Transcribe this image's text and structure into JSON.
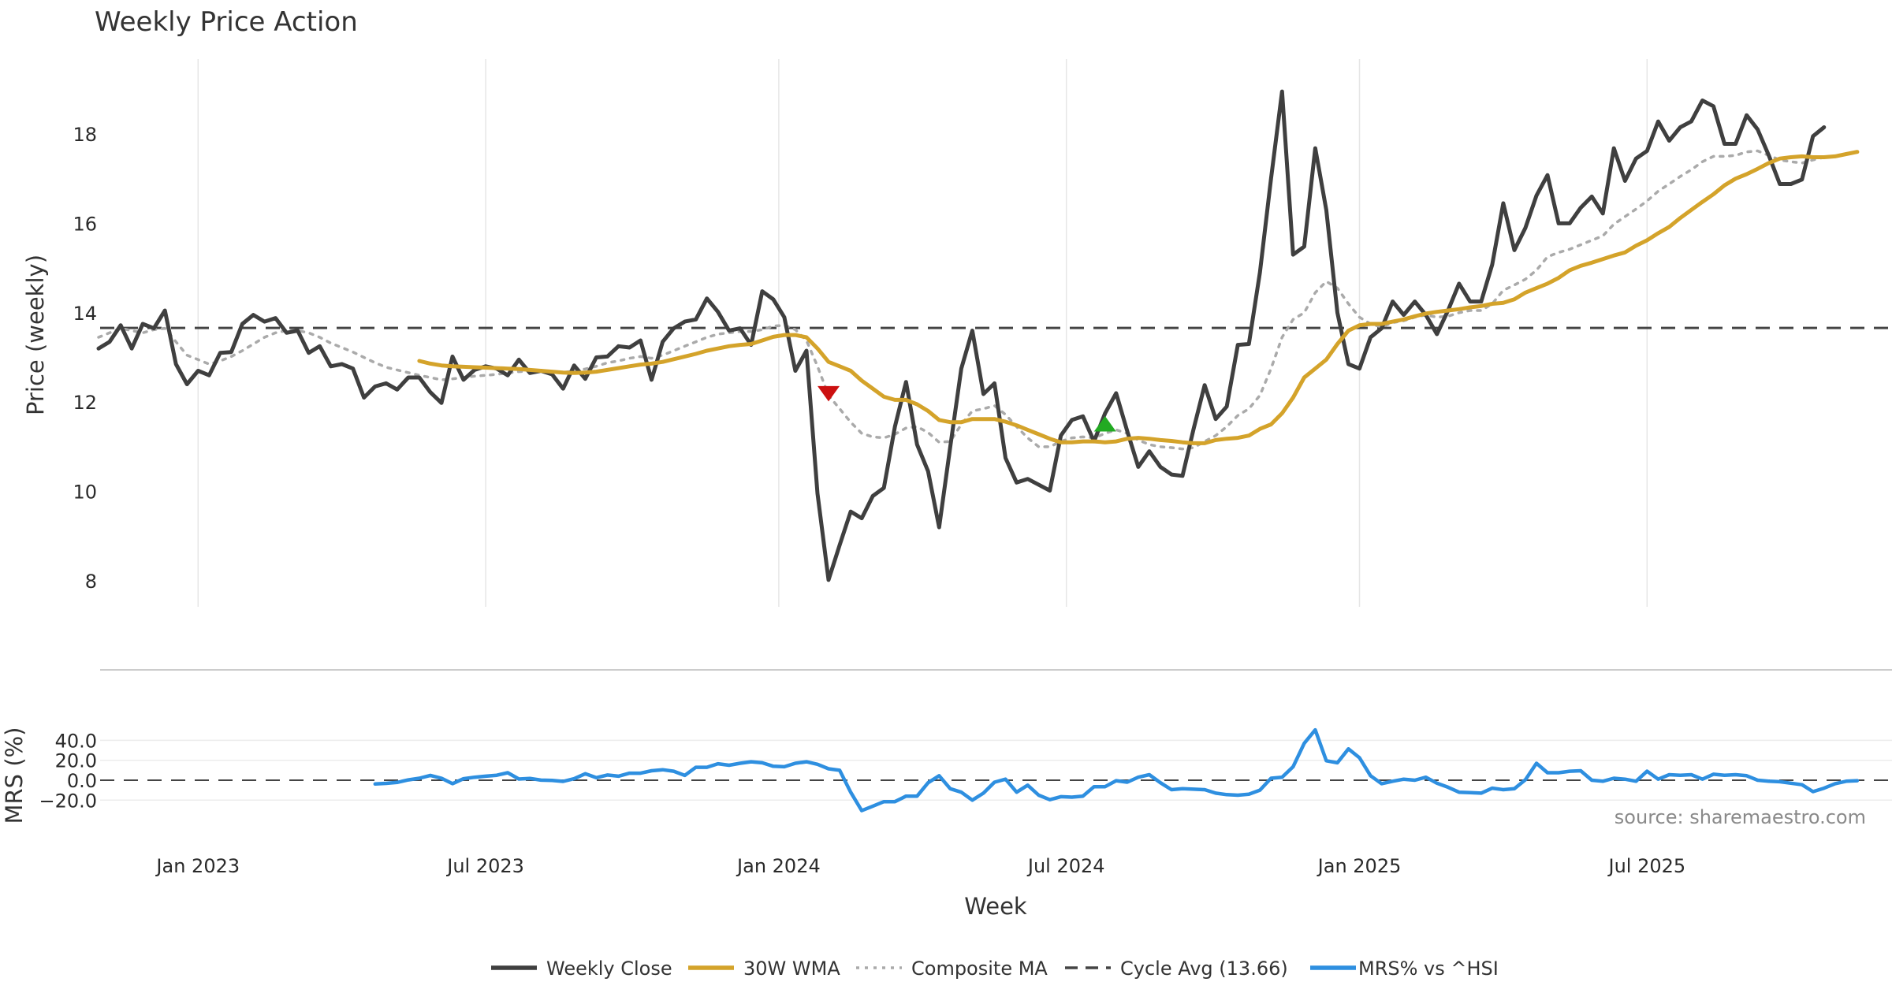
{
  "chart_data": [
    {
      "type": "line",
      "title": "Weekly Price Action",
      "xlabel": "",
      "ylabel": "Price (weekly)",
      "ylim": [
        7.4,
        19.6
      ],
      "xlim": [
        0,
        162
      ],
      "yticks": [
        8,
        10,
        12,
        14,
        16,
        18
      ],
      "grid": "vertical",
      "cycle_avg": 13.66,
      "x_date_ticks": [
        {
          "x": 9,
          "label": "Jan 2023"
        },
        {
          "x": 35,
          "label": "Jul 2023"
        },
        {
          "x": 61.5,
          "label": "Jan 2024"
        },
        {
          "x": 87.5,
          "label": "Jul 2024"
        },
        {
          "x": 114,
          "label": "Jan 2025"
        },
        {
          "x": 140,
          "label": "Jul 2025"
        }
      ],
      "series": [
        {
          "name": "Weekly Close",
          "color": "#3f3f3f",
          "style": "solid",
          "start": 0,
          "values": [
            13.2,
            13.35,
            13.72,
            13.2,
            13.75,
            13.65,
            14.05,
            12.85,
            12.4,
            12.7,
            12.6,
            13.1,
            13.12,
            13.75,
            13.95,
            13.8,
            13.88,
            13.55,
            13.6,
            13.1,
            13.25,
            12.8,
            12.85,
            12.75,
            12.1,
            12.35,
            12.42,
            12.28,
            12.55,
            12.55,
            12.22,
            11.98,
            13.02,
            12.5,
            12.72,
            12.8,
            12.75,
            12.6,
            12.95,
            12.65,
            12.7,
            12.62,
            12.3,
            12.82,
            12.52,
            13.0,
            13.02,
            13.25,
            13.22,
            13.38,
            12.5,
            13.35,
            13.65,
            13.8,
            13.85,
            14.32,
            14.02,
            13.6,
            13.65,
            13.28,
            14.48,
            14.3,
            13.9,
            12.7,
            13.15,
            9.95,
            8.02,
            8.8,
            9.55,
            9.4,
            9.9,
            10.08,
            11.45,
            12.45,
            11.05,
            10.45,
            9.2,
            11.0,
            12.75,
            13.6,
            12.18,
            12.42,
            10.75,
            10.2,
            10.28,
            10.15,
            10.02,
            11.25,
            11.6,
            11.68,
            11.12,
            11.75,
            12.2,
            11.35,
            10.55,
            10.9,
            10.55,
            10.38,
            10.35,
            11.4,
            12.38,
            11.62,
            11.9,
            13.28,
            13.3,
            14.9,
            17.0,
            18.95,
            15.3,
            15.48,
            17.68,
            16.3,
            14.0,
            12.85,
            12.75,
            13.45,
            13.65,
            14.25,
            13.95,
            14.25,
            13.95,
            13.52,
            14.05,
            14.65,
            14.25,
            14.25,
            15.08,
            16.45,
            15.4,
            15.9,
            16.62,
            17.08,
            16.0,
            16.0,
            16.35,
            16.6,
            16.22,
            17.68,
            16.95,
            17.45,
            17.62,
            18.28,
            17.85,
            18.15,
            18.28,
            18.75,
            18.62,
            17.78,
            17.78,
            18.42,
            18.1,
            17.52,
            16.88,
            16.88,
            16.98,
            17.95,
            18.15
          ]
        },
        {
          "name": "30W WMA",
          "color": "#d4a32a",
          "style": "solid",
          "start": 29,
          "values": [
            12.92,
            12.86,
            12.82,
            12.8,
            12.79,
            12.78,
            12.77,
            12.76,
            12.75,
            12.74,
            12.72,
            12.7,
            12.68,
            12.66,
            12.65,
            12.66,
            12.68,
            12.72,
            12.76,
            12.8,
            12.84,
            12.86,
            12.9,
            12.96,
            13.02,
            13.08,
            13.15,
            13.2,
            13.25,
            13.28,
            13.3,
            13.38,
            13.46,
            13.5,
            13.5,
            13.45,
            13.2,
            12.9,
            12.8,
            12.7,
            12.48,
            12.3,
            12.12,
            12.05,
            12.05,
            11.95,
            11.8,
            11.6,
            11.55,
            11.55,
            11.62,
            11.62,
            11.62,
            11.56,
            11.48,
            11.38,
            11.28,
            11.18,
            11.1,
            11.1,
            11.12,
            11.12,
            11.1,
            11.12,
            11.18,
            11.2,
            11.18,
            11.15,
            11.13,
            11.1,
            11.08,
            11.08,
            11.15,
            11.18,
            11.2,
            11.25,
            11.4,
            11.5,
            11.75,
            12.1,
            12.55,
            12.75,
            12.95,
            13.3,
            13.6,
            13.72,
            13.75,
            13.75,
            13.8,
            13.85,
            13.92,
            13.98,
            14.02,
            14.05,
            14.08,
            14.12,
            14.15,
            14.2,
            14.22,
            14.3,
            14.45,
            14.55,
            14.65,
            14.78,
            14.95,
            15.05,
            15.12,
            15.2,
            15.28,
            15.35,
            15.5,
            15.62,
            15.78,
            15.92,
            16.12,
            16.3,
            16.48,
            16.65,
            16.85,
            17.0,
            17.1,
            17.22,
            17.35,
            17.45,
            17.48,
            17.5,
            17.48,
            17.48,
            17.5,
            17.55,
            17.6
          ]
        },
        {
          "name": "Composite MA",
          "color": "#aaaaaa",
          "style": "dotted",
          "start": 0,
          "values": [
            13.45,
            13.55,
            13.65,
            13.6,
            13.55,
            13.62,
            13.65,
            13.35,
            13.05,
            12.95,
            12.85,
            12.92,
            13.02,
            13.15,
            13.3,
            13.45,
            13.55,
            13.6,
            13.6,
            13.55,
            13.45,
            13.32,
            13.22,
            13.12,
            13.0,
            12.88,
            12.78,
            12.72,
            12.66,
            12.6,
            12.55,
            12.5,
            12.52,
            12.55,
            12.58,
            12.6,
            12.62,
            12.65,
            12.68,
            12.7,
            12.7,
            12.68,
            12.66,
            12.7,
            12.74,
            12.8,
            12.88,
            12.92,
            12.98,
            13.02,
            12.98,
            13.05,
            13.15,
            13.25,
            13.35,
            13.45,
            13.52,
            13.55,
            13.58,
            13.58,
            13.62,
            13.7,
            13.72,
            13.62,
            13.38,
            12.8,
            12.15,
            11.85,
            11.55,
            11.3,
            11.22,
            11.2,
            11.28,
            11.42,
            11.45,
            11.32,
            11.1,
            11.12,
            11.5,
            11.8,
            11.85,
            11.92,
            11.72,
            11.45,
            11.2,
            11.0,
            11.0,
            11.12,
            11.2,
            11.22,
            11.2,
            11.3,
            11.38,
            11.3,
            11.15,
            11.05,
            11.0,
            10.98,
            10.95,
            10.98,
            11.12,
            11.25,
            11.45,
            11.7,
            11.85,
            12.15,
            12.75,
            13.45,
            13.85,
            14.0,
            14.45,
            14.7,
            14.55,
            14.2,
            13.9,
            13.75,
            13.68,
            13.78,
            13.82,
            13.9,
            13.95,
            13.9,
            13.92,
            14.0,
            14.05,
            14.05,
            14.2,
            14.5,
            14.62,
            14.75,
            14.95,
            15.25,
            15.35,
            15.42,
            15.52,
            15.62,
            15.72,
            15.98,
            16.15,
            16.32,
            16.5,
            16.72,
            16.88,
            17.05,
            17.2,
            17.38,
            17.5,
            17.5,
            17.52,
            17.6,
            17.62,
            17.52,
            17.42,
            17.38,
            17.35,
            17.42,
            17.48
          ]
        },
        {
          "name": "Cycle Avg (13.66)",
          "color": "#444444",
          "style": "dashed",
          "value": 13.66
        }
      ],
      "markers": [
        {
          "type": "sell",
          "shape": "down-triangle",
          "color": "#cc1111",
          "x": 66,
          "y": 12.2
        },
        {
          "type": "buy",
          "shape": "up-triangle",
          "color": "#22aa22",
          "x": 91,
          "y": 11.5
        }
      ]
    },
    {
      "type": "line",
      "xlabel": "Week",
      "ylabel": "MRS (%)",
      "ylim": [
        -32,
        52
      ],
      "yticks": [
        -20,
        0,
        20,
        40
      ],
      "ytick_labels": [
        "−20.0",
        "0.0",
        "20.0",
        "40.0"
      ],
      "zero_line": 0,
      "series": [
        {
          "name": "MRS% vs ^HSI",
          "color": "#2e8fe0",
          "style": "solid",
          "start": 25,
          "values": [
            -3.8,
            -3.2,
            -2.2,
            0.3,
            2.0,
            4.8,
            2.0,
            -3.5,
            1.5,
            3.0,
            4.0,
            5.0,
            7.5,
            1.2,
            1.8,
            0.1,
            -0.2,
            -1.2,
            1.5,
            6.5,
            2.5,
            5.2,
            4.0,
            7.0,
            7.0,
            9.5,
            10.5,
            9.0,
            4.8,
            13.0,
            13.0,
            16.5,
            15.0,
            17.0,
            18.5,
            17.5,
            14.0,
            13.5,
            17.0,
            18.5,
            16.0,
            11.5,
            10.0,
            -12.0,
            -30.5,
            -26.0,
            -21.5,
            -21.5,
            -16.0,
            -16.0,
            -2.5,
            4.5,
            -8.5,
            -12.0,
            -20.0,
            -13.0,
            -2.0,
            1.0,
            -12.0,
            -5.0,
            -15.0,
            -19.5,
            -16.5,
            -17.0,
            -16.0,
            -6.5,
            -6.5,
            -0.5,
            -2.0,
            3.0,
            5.5,
            -2.5,
            -9.5,
            -8.5,
            -9.0,
            -9.5,
            -13.0,
            -14.5,
            -15.0,
            -14.0,
            -10.0,
            2.0,
            3.0,
            13.5,
            37.0,
            50.5,
            19.5,
            17.5,
            31.5,
            22.5,
            4.5,
            -3.5,
            -1.0,
            1.0,
            0.0,
            3.0,
            -3.0,
            -7.0,
            -12.0,
            -12.5,
            -13.0,
            -8.0,
            -9.5,
            -8.5,
            0.5,
            17.0,
            7.5,
            7.5,
            9.0,
            9.5,
            0.0,
            -1.0,
            2.0,
            1.0,
            -1.0,
            9.0,
            1.0,
            5.5,
            5.0,
            5.5,
            1.0,
            6.0,
            5.0,
            5.5,
            4.5,
            0.0,
            -1.0,
            -1.5,
            -3.0,
            -4.5,
            -11.5,
            -8.0,
            -3.5,
            -1.0,
            -0.5
          ]
        }
      ],
      "annotations": [
        "source: sharemaestro.com"
      ]
    }
  ],
  "legend": {
    "placement": "bottom-center",
    "items": [
      {
        "label": "Weekly Close",
        "color": "#3f3f3f",
        "style": "solid"
      },
      {
        "label": "30W WMA",
        "color": "#d4a32a",
        "style": "solid"
      },
      {
        "label": "Composite MA",
        "color": "#aaaaaa",
        "style": "dotted"
      },
      {
        "label": "Cycle Avg (13.66)",
        "color": "#444444",
        "style": "dashed"
      },
      {
        "label": "MRS% vs ^HSI",
        "color": "#2e8fe0",
        "style": "solid"
      }
    ]
  }
}
